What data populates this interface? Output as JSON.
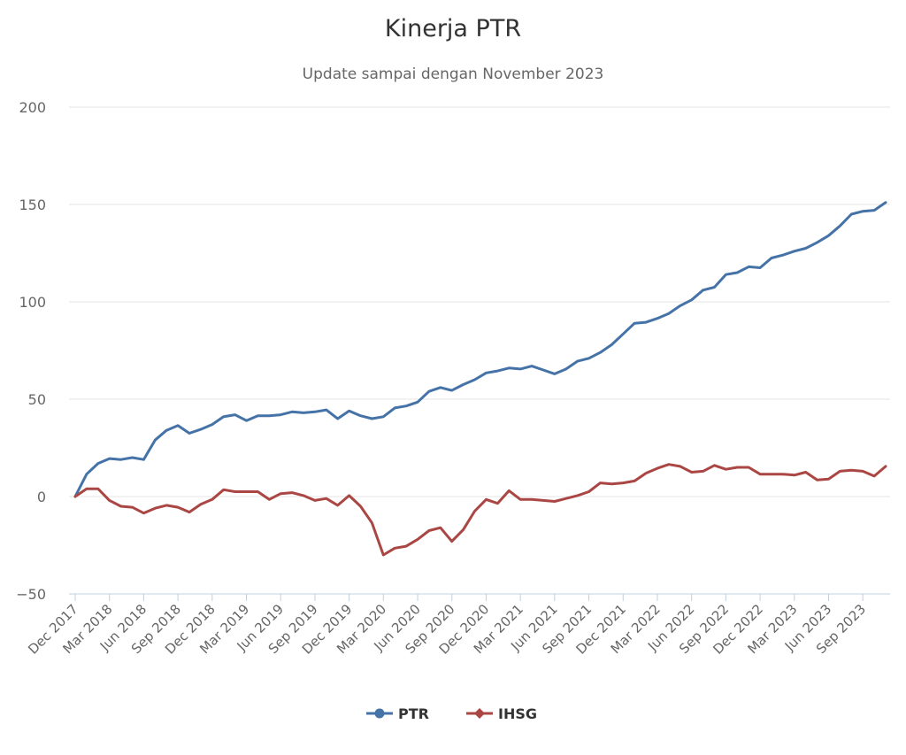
{
  "chart_data": {
    "type": "line",
    "title": "Kinerja PTR",
    "subtitle": "Update sampai dengan November 2023",
    "xlabel": "",
    "ylabel": "",
    "ylim": [
      -50,
      200
    ],
    "yticks": [
      -50,
      0,
      50,
      100,
      150,
      200
    ],
    "grid": true,
    "legend_position": "bottom-center",
    "x_tick_labels": [
      "Dec 2017",
      "Mar 2018",
      "Jun 2018",
      "Sep 2018",
      "Dec 2018",
      "Mar 2019",
      "Jun 2019",
      "Sep 2019",
      "Dec 2019",
      "Mar 2020",
      "Jun 2020",
      "Sep 2020",
      "Dec 2020",
      "Mar 2021",
      "Jun 2021",
      "Sep 2021",
      "Dec 2021",
      "Mar 2022",
      "Jun 2022",
      "Sep 2022",
      "Dec 2022",
      "Mar 2023",
      "Jun 2023",
      "Sep 2023"
    ],
    "x": [
      "Dec 2017",
      "Jan 2018",
      "Feb 2018",
      "Mar 2018",
      "Apr 2018",
      "May 2018",
      "Jun 2018",
      "Jul 2018",
      "Aug 2018",
      "Sep 2018",
      "Oct 2018",
      "Nov 2018",
      "Dec 2018",
      "Jan 2019",
      "Feb 2019",
      "Mar 2019",
      "Apr 2019",
      "May 2019",
      "Jun 2019",
      "Jul 2019",
      "Aug 2019",
      "Sep 2019",
      "Oct 2019",
      "Nov 2019",
      "Dec 2019",
      "Jan 2020",
      "Feb 2020",
      "Mar 2020",
      "Apr 2020",
      "May 2020",
      "Jun 2020",
      "Jul 2020",
      "Aug 2020",
      "Sep 2020",
      "Oct 2020",
      "Nov 2020",
      "Dec 2020",
      "Jan 2021",
      "Feb 2021",
      "Mar 2021",
      "Apr 2021",
      "May 2021",
      "Jun 2021",
      "Jul 2021",
      "Aug 2021",
      "Sep 2021",
      "Oct 2021",
      "Nov 2021",
      "Dec 2021",
      "Jan 2022",
      "Feb 2022",
      "Mar 2022",
      "Apr 2022",
      "May 2022",
      "Jun 2022",
      "Jul 2022",
      "Aug 2022",
      "Sep 2022",
      "Oct 2022",
      "Nov 2022",
      "Dec 2022",
      "Jan 2023",
      "Feb 2023",
      "Mar 2023",
      "Apr 2023",
      "May 2023",
      "Jun 2023",
      "Jul 2023",
      "Aug 2023",
      "Sep 2023",
      "Oct 2023",
      "Nov 2023"
    ],
    "series": [
      {
        "name": "PTR",
        "color": "#4572A7",
        "marker": "circle",
        "values": [
          0,
          11.5,
          17,
          19.5,
          19,
          20,
          19,
          29,
          34,
          36.5,
          32.5,
          34.5,
          37,
          41,
          42,
          39,
          41.5,
          41.5,
          42,
          43.5,
          43,
          43.5,
          44.5,
          40,
          44,
          41.5,
          40,
          41,
          45.5,
          46.5,
          48.5,
          54,
          56,
          54.5,
          57.5,
          60,
          63.5,
          64.5,
          66,
          65.5,
          67,
          65,
          63,
          65.5,
          69.5,
          71,
          74,
          78,
          83.5,
          89,
          89.5,
          91.5,
          94,
          98,
          101,
          106,
          107.5,
          114,
          115,
          118,
          117.5,
          122.5,
          124,
          126,
          127.5,
          130.5,
          134,
          139,
          145,
          146.5,
          147,
          151
        ]
      },
      {
        "name": "IHSG",
        "color": "#AA4643",
        "marker": "diamond",
        "values": [
          0,
          4,
          4,
          -2,
          -5,
          -5.5,
          -8.5,
          -6,
          -4.5,
          -5.5,
          -8,
          -4,
          -1.5,
          3.5,
          2.5,
          2.5,
          2.5,
          -1.5,
          1.5,
          2,
          0.5,
          -2,
          -1,
          -4.5,
          0.5,
          -5,
          -13.5,
          -30,
          -26.5,
          -25.5,
          -22,
          -17.5,
          -16,
          -23,
          -17,
          -7.5,
          -1.5,
          -3.5,
          3,
          -1.5,
          -1.5,
          -2,
          -2.5,
          -1,
          0.5,
          2.5,
          7,
          6.5,
          7,
          8,
          12,
          14.5,
          16.5,
          15.5,
          12.5,
          13,
          16,
          14,
          15,
          15,
          11.5,
          11.5,
          11.5,
          11,
          12.5,
          8.5,
          9,
          13,
          13.5,
          13,
          10.5,
          15.5
        ]
      }
    ]
  }
}
